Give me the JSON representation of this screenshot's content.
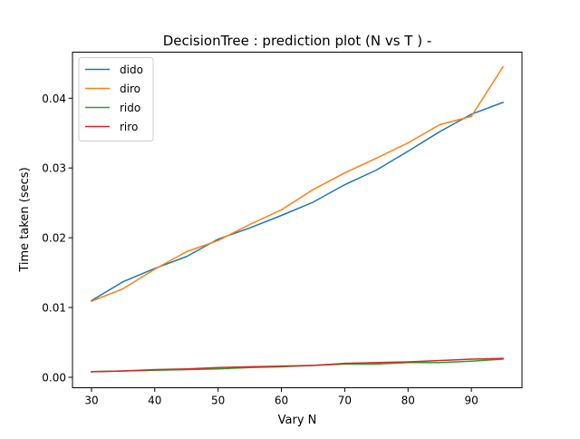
{
  "chart_data": {
    "type": "line",
    "title": "DecisionTree : prediction plot (N vs T ) -",
    "xlabel": "Vary N",
    "ylabel": "Time taken (secs)",
    "x": [
      30,
      35,
      40,
      45,
      50,
      55,
      60,
      65,
      70,
      75,
      80,
      85,
      90,
      95
    ],
    "xlim": [
      27,
      98
    ],
    "ylim": [
      -0.0015,
      0.0466
    ],
    "xticks": [
      30,
      40,
      50,
      60,
      70,
      80,
      90
    ],
    "yticks": [
      0.0,
      0.01,
      0.02,
      0.03,
      0.04
    ],
    "ytick_labels": [
      "0.00",
      "0.01",
      "0.02",
      "0.03",
      "0.04"
    ],
    "legend_position": "top-left",
    "grid": false,
    "series": [
      {
        "name": "dido",
        "color": "#1f77b4",
        "values": [
          0.011,
          0.0137,
          0.0156,
          0.0173,
          0.0198,
          0.0214,
          0.0232,
          0.0251,
          0.0276,
          0.0297,
          0.0324,
          0.0352,
          0.0377,
          0.0394
        ]
      },
      {
        "name": "diro",
        "color": "#ff7f0e",
        "values": [
          0.0109,
          0.0127,
          0.0155,
          0.018,
          0.0196,
          0.0219,
          0.024,
          0.0269,
          0.0293,
          0.0314,
          0.0336,
          0.0362,
          0.0374,
          0.0445
        ]
      },
      {
        "name": "rido",
        "color": "#2ca02c",
        "values": [
          0.0008,
          0.0009,
          0.001,
          0.0011,
          0.0012,
          0.0014,
          0.0015,
          0.0017,
          0.0019,
          0.0019,
          0.0021,
          0.0021,
          0.0023,
          0.0026
        ]
      },
      {
        "name": "riro",
        "color": "#d62728",
        "values": [
          0.0008,
          0.0009,
          0.0011,
          0.0012,
          0.0014,
          0.0015,
          0.0016,
          0.0017,
          0.002,
          0.0021,
          0.0022,
          0.0024,
          0.0026,
          0.0027
        ]
      }
    ]
  }
}
